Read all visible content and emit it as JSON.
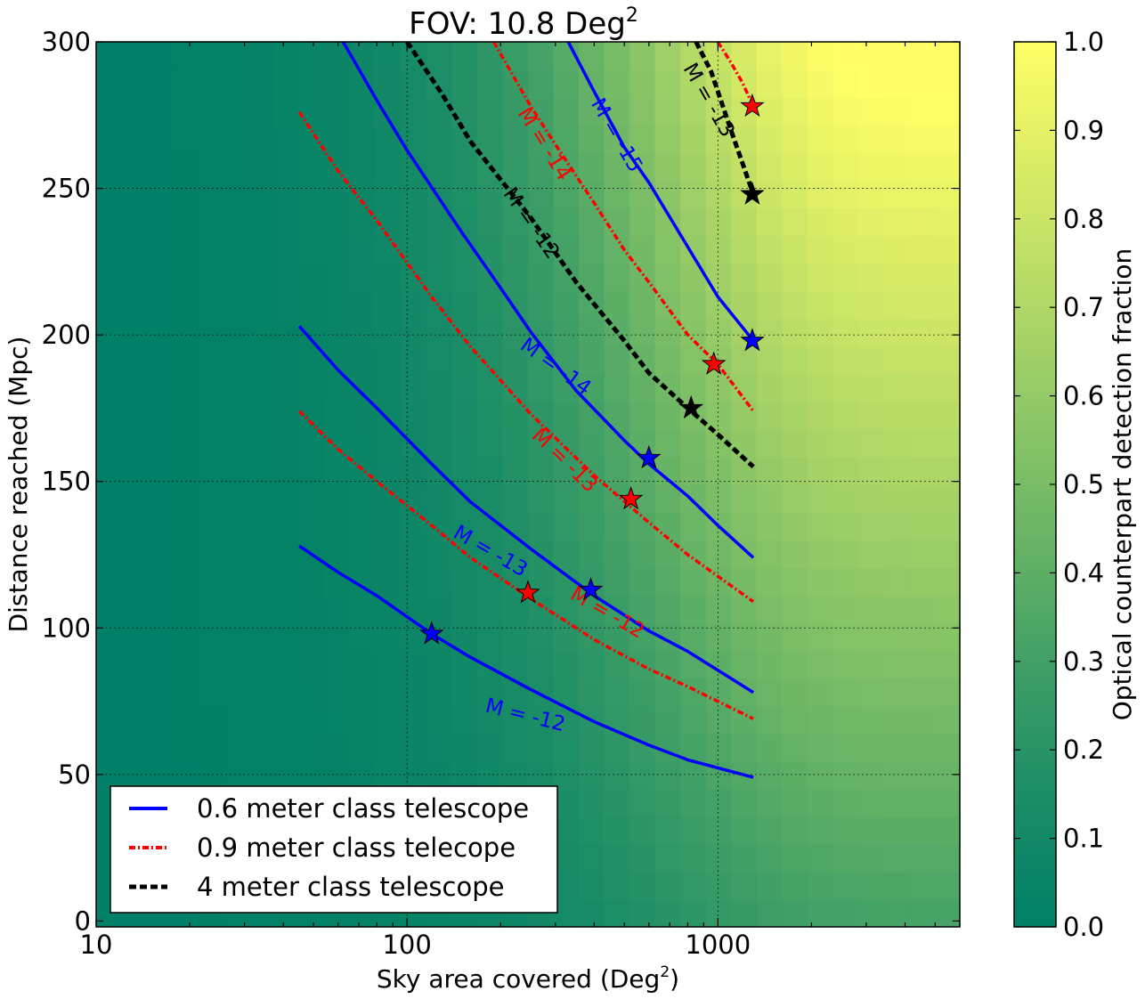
{
  "chart_data": {
    "type": "heatmap",
    "title": "FOV: 10.8 Deg",
    "title_superscript": "2",
    "xlabel": "Sky area covered (Deg",
    "xlabel_superscript": "2",
    "xlabel_close": ")",
    "ylabel": "Distance reached (Mpc)",
    "colorbar_label": "Optical counterpart detection fraction",
    "x_scale": "log",
    "xlim": [
      10,
      6000
    ],
    "ylim": [
      -2,
      300
    ],
    "x_ticks": [
      10,
      100,
      1000
    ],
    "x_tick_labels": [
      "10",
      "100",
      "1000"
    ],
    "y_ticks": [
      0,
      50,
      100,
      150,
      200,
      250,
      300
    ],
    "y_tick_labels": [
      "0",
      "50",
      "100",
      "150",
      "200",
      "250",
      "300"
    ],
    "colorbar_ticks": [
      0.0,
      0.1,
      0.2,
      0.3,
      0.4,
      0.5,
      0.6,
      0.7,
      0.8,
      0.9,
      1.0
    ],
    "colorbar_tick_labels": [
      "0.0",
      "0.1",
      "0.2",
      "0.3",
      "0.4",
      "0.5",
      "0.6",
      "0.7",
      "0.8",
      "0.9",
      "1.0"
    ],
    "colormap": [
      "#008066",
      "#1a8c66",
      "#3d9e66",
      "#66b366",
      "#8cc666",
      "#b3d966",
      "#d9ec66",
      "#ffff66"
    ],
    "grid": true,
    "legend_position": "lower-left",
    "series": [
      {
        "name": "0.6 meter class telescope",
        "color": "#0000ff",
        "style": "solid",
        "contours": [
          {
            "label": "M = -12",
            "x": [
              45,
              60,
              80,
              120,
              160,
              250,
              400,
              600,
              800,
              1300
            ],
            "y": [
              128,
              119,
              111,
              98,
              90,
              79,
              68,
              60,
              55,
              49
            ],
            "label_x": 240,
            "label_y": 70,
            "label_angle": 14
          },
          {
            "label": "M = -13",
            "x": [
              45,
              60,
              80,
              120,
              160,
              250,
              400,
              600,
              800,
              1300
            ],
            "y": [
              203,
              188,
              175,
              156,
              143,
              127,
              111,
              99,
              92,
              78
            ],
            "label_x": 185,
            "label_y": 126,
            "label_angle": 30
          },
          {
            "label": "M = -14",
            "x": [
              60,
              80,
              100,
              150,
              200,
              250,
              350,
              500,
              600,
              800,
              1000,
              1300
            ],
            "y": [
              303,
              280,
              263,
              235,
              216,
              201,
              181,
              164,
              156,
              145,
              135,
              124
            ],
            "label_x": 300,
            "label_y": 189,
            "label_angle": 36
          },
          {
            "label": "M = -15",
            "x": [
              330,
              400,
              500,
              600,
              800,
              1000,
              1300
            ],
            "y": [
              300,
              283,
              264,
              252,
              230,
              213,
              198
            ],
            "label_x": 470,
            "label_y": 268,
            "label_angle": 60
          }
        ]
      },
      {
        "name": "0.9 meter class telecope",
        "color": "#ff0000",
        "style": "dashdot",
        "contours": [
          {
            "label": "M = -12",
            "x": [
              45,
              60,
              80,
              120,
              160,
              250,
              400,
              600,
              800,
              1300
            ],
            "y": [
              174,
              161,
              150,
              135,
              124,
              110,
              96,
              86,
              80,
              69
            ],
            "label_x": 440,
            "label_y": 105,
            "label_angle": 30
          },
          {
            "label": "M = -13",
            "x": [
              45,
              60,
              80,
              120,
              160,
              250,
              400,
              600,
              800,
              1300
            ],
            "y": [
              276,
              256,
              239,
              213,
              196,
              173,
              152,
              136,
              125,
              109
            ],
            "label_x": 320,
            "label_y": 157,
            "label_angle": 44
          },
          {
            "label": "M = -14",
            "x": [
              190,
              250,
              300,
              400,
              500,
              600,
              800,
              1000,
              1300
            ],
            "y": [
              300,
              278,
              265,
              245,
              229,
              218,
              200,
              190,
              174
            ],
            "label_x": 275,
            "label_y": 265,
            "label_angle": 58
          },
          {
            "label": "M = -13",
            "show_label": false,
            "x": [
              1000,
              1100,
              1200,
              1300
            ],
            "y": [
              300,
              293,
              286,
              278
            ]
          }
        ]
      },
      {
        "name": "4 meter class telescope",
        "color": "#000000",
        "style": "dashed",
        "contours": [
          {
            "label": "M = -12",
            "x": [
              100,
              130,
              160,
              250,
              350,
              500,
              600,
              800,
              1000,
              1300
            ],
            "y": [
              300,
              282,
              266,
              240,
              218,
              198,
              187,
              175,
              166,
              155
            ],
            "label_x": 250,
            "label_y": 238,
            "label_angle": 55
          },
          {
            "label": "M = -13",
            "x": [
              850,
              950,
              1100,
              1300
            ],
            "y": [
              300,
              290,
              270,
              248
            ],
            "label_x": 930,
            "label_y": 280,
            "label_angle": 60
          }
        ]
      }
    ],
    "markers": [
      {
        "x": 120,
        "y": 98,
        "color": "#0000ff"
      },
      {
        "x": 390,
        "y": 113,
        "color": "#0000ff"
      },
      {
        "x": 600,
        "y": 158,
        "color": "#0000ff"
      },
      {
        "x": 1290,
        "y": 198,
        "color": "#0000ff"
      },
      {
        "x": 245,
        "y": 112,
        "color": "#ff0000"
      },
      {
        "x": 525,
        "y": 144,
        "color": "#ff0000"
      },
      {
        "x": 970,
        "y": 190,
        "color": "#ff0000"
      },
      {
        "x": 1290,
        "y": 278,
        "color": "#ff0000"
      },
      {
        "x": 820,
        "y": 175,
        "color": "#000000"
      },
      {
        "x": 1290,
        "y": 248,
        "color": "#000000"
      }
    ]
  }
}
